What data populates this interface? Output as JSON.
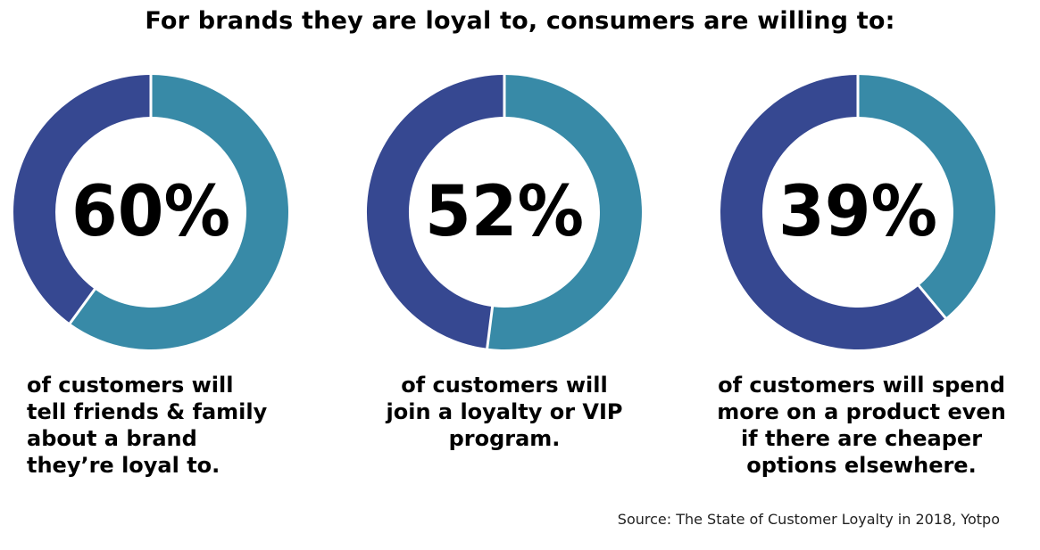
{
  "title": "For brands they are loyal to, consumers are willing to:",
  "source": "Source: The State of Customer Loyalty in 2018, Yotpo",
  "colors": {
    "highlight": "#388aa7",
    "remainder": "#364891",
    "separator": "#ffffff"
  },
  "chart_data": [
    {
      "type": "pie",
      "value": 60,
      "label": "60%",
      "caption_lines": [
        "of customers will",
        "tell friends & family",
        "about a brand",
        "they’re loyal to."
      ],
      "caption_align": "left"
    },
    {
      "type": "pie",
      "value": 52,
      "label": "52%",
      "caption_lines": [
        "of customers will",
        "join a loyalty or VIP",
        "program."
      ],
      "caption_align": "center"
    },
    {
      "type": "pie",
      "value": 39,
      "label": "39%",
      "caption_lines": [
        "of customers will spend",
        "more on a product even",
        "if there are cheaper",
        "options elsewhere."
      ],
      "caption_align": "center"
    }
  ]
}
